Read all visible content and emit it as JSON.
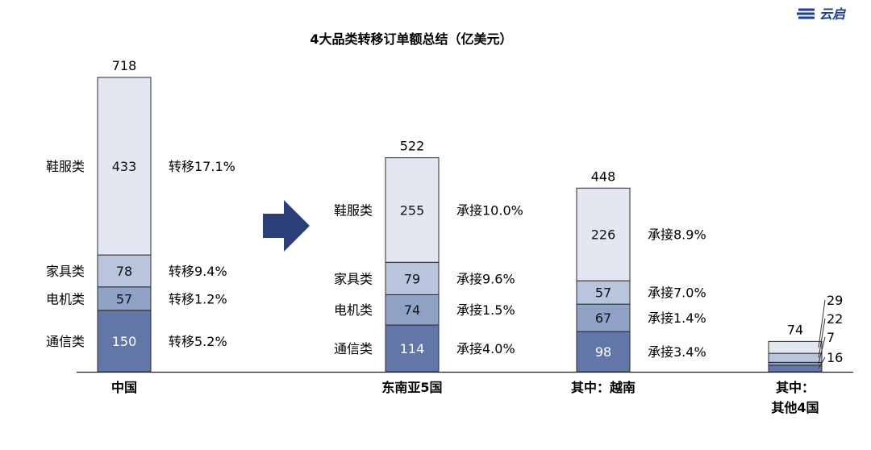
{
  "logo_text": "云启",
  "chart_data": {
    "type": "bar",
    "stacked": true,
    "title": "4大品类转移订单额总结（亿美元）",
    "category_labels": [
      "鞋服类",
      "家具类",
      "电机类",
      "通信类"
    ],
    "colors": {
      "鞋服类": "#e2e7f2",
      "家具类": "#b9c5dc",
      "电机类": "#8fa1c5",
      "通信类": "#6277a8",
      "outline": "#2b2b2b"
    },
    "bars": [
      {
        "name": "中国",
        "total": "718",
        "values": [
          433,
          78,
          57,
          150
        ],
        "notes": [
          "转移17.1%",
          "转移9.4%",
          "转移1.2%",
          "转移5.2%"
        ]
      },
      {
        "name": "东南亚5国",
        "total": "522",
        "values": [
          255,
          79,
          74,
          114
        ],
        "notes": [
          "承接10.0%",
          "承接9.6%",
          "承接1.5%",
          "承接4.0%"
        ]
      },
      {
        "name": "其中：越南",
        "total": "448",
        "values": [
          226,
          57,
          67,
          98
        ],
        "notes": [
          "承接8.9%",
          "承接7.0%",
          "承接1.4%",
          "承接3.4%"
        ]
      },
      {
        "name": "其中：其他4国",
        "total": "74",
        "values": [
          29,
          22,
          7,
          16
        ],
        "notes": []
      }
    ]
  }
}
